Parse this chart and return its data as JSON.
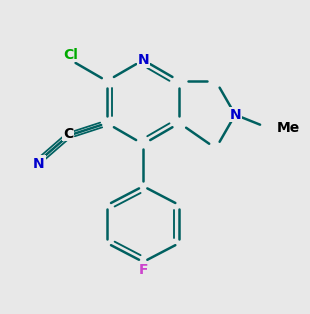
{
  "background_color": "#e8e8e8",
  "bond_color": "#006060",
  "bond_width": 1.8,
  "N_color": "#0000cc",
  "Cl_color": "#00aa00",
  "F_color": "#cc44cc",
  "C_color": "#000000",
  "label_fontsize": 10
}
